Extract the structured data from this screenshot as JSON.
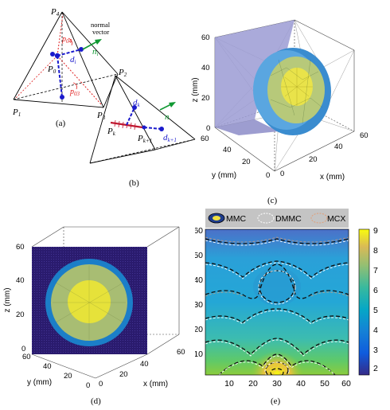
{
  "panels": {
    "a": {
      "caption": "(a)",
      "vertices": [
        "P",
        "P",
        "P",
        "P",
        "P"
      ],
      "vertex_subs": [
        "4",
        "0",
        "1",
        "2",
        "3"
      ],
      "vectors": {
        "p04": "p",
        "p04_sub": "04",
        "p03": "p",
        "p03_sub": "03",
        "d": "d",
        "d_sub": "i",
        "n": "n",
        "n_sub": "i"
      },
      "normal_label_1": "normal",
      "normal_label_2": "vector"
    },
    "b": {
      "caption": "(b)",
      "pk": "P",
      "pk_sub": "k",
      "pk1": "P",
      "pk1_sub": "k+1",
      "dk": "d",
      "dk_sub": "k",
      "dk1": "d",
      "dk1_sub": "k+1",
      "n": "n"
    },
    "c": {
      "caption": "(c)",
      "zlabel": "z (mm)",
      "ylabel": "y (mm)",
      "xlabel": "x (mm)",
      "zticks": [
        "0",
        "20",
        "40",
        "60"
      ],
      "yticks": [
        "60",
        "40",
        "20",
        "0"
      ],
      "xticks": [
        "0",
        "20",
        "40",
        "60"
      ]
    },
    "d": {
      "caption": "(d)",
      "zlabel": "z (mm)",
      "ylabel": "y (mm)",
      "xlabel": "x (mm)",
      "zticks": [
        "0",
        "20",
        "40",
        "60"
      ],
      "yticks": [
        "60",
        "40",
        "20",
        "0"
      ],
      "xticks": [
        "0",
        "20",
        "40",
        "60"
      ]
    },
    "e": {
      "caption": "(e)",
      "legend": [
        "MMC",
        "DMMC",
        "MCX"
      ],
      "xticks": [
        "10",
        "20",
        "30",
        "40",
        "50",
        "60"
      ],
      "yticks": [
        "60",
        "50",
        "40",
        "30",
        "20",
        "10"
      ],
      "colorbar_ticks": [
        "9",
        "8",
        "7",
        "6",
        "5",
        "4",
        "3",
        "2"
      ],
      "colors": {
        "mmc": "#1a1a1a",
        "dmmc": "#ffffff",
        "mcx": "#e0a07a"
      }
    }
  },
  "chart_data": {
    "type": "heatmap",
    "title": "",
    "x_ticks": [
      10,
      20,
      30,
      40,
      50,
      60
    ],
    "y_ticks": [
      10,
      20,
      30,
      40,
      50,
      60
    ],
    "xlim": [
      0,
      60
    ],
    "ylim": [
      0,
      60
    ],
    "colorbar_range": [
      1.5,
      9
    ],
    "colorbar_ticks": [
      2,
      3,
      4,
      5,
      6,
      7,
      8,
      9
    ],
    "series": [
      {
        "name": "MMC"
      },
      {
        "name": "DMMC"
      },
      {
        "name": "MCX"
      }
    ]
  }
}
